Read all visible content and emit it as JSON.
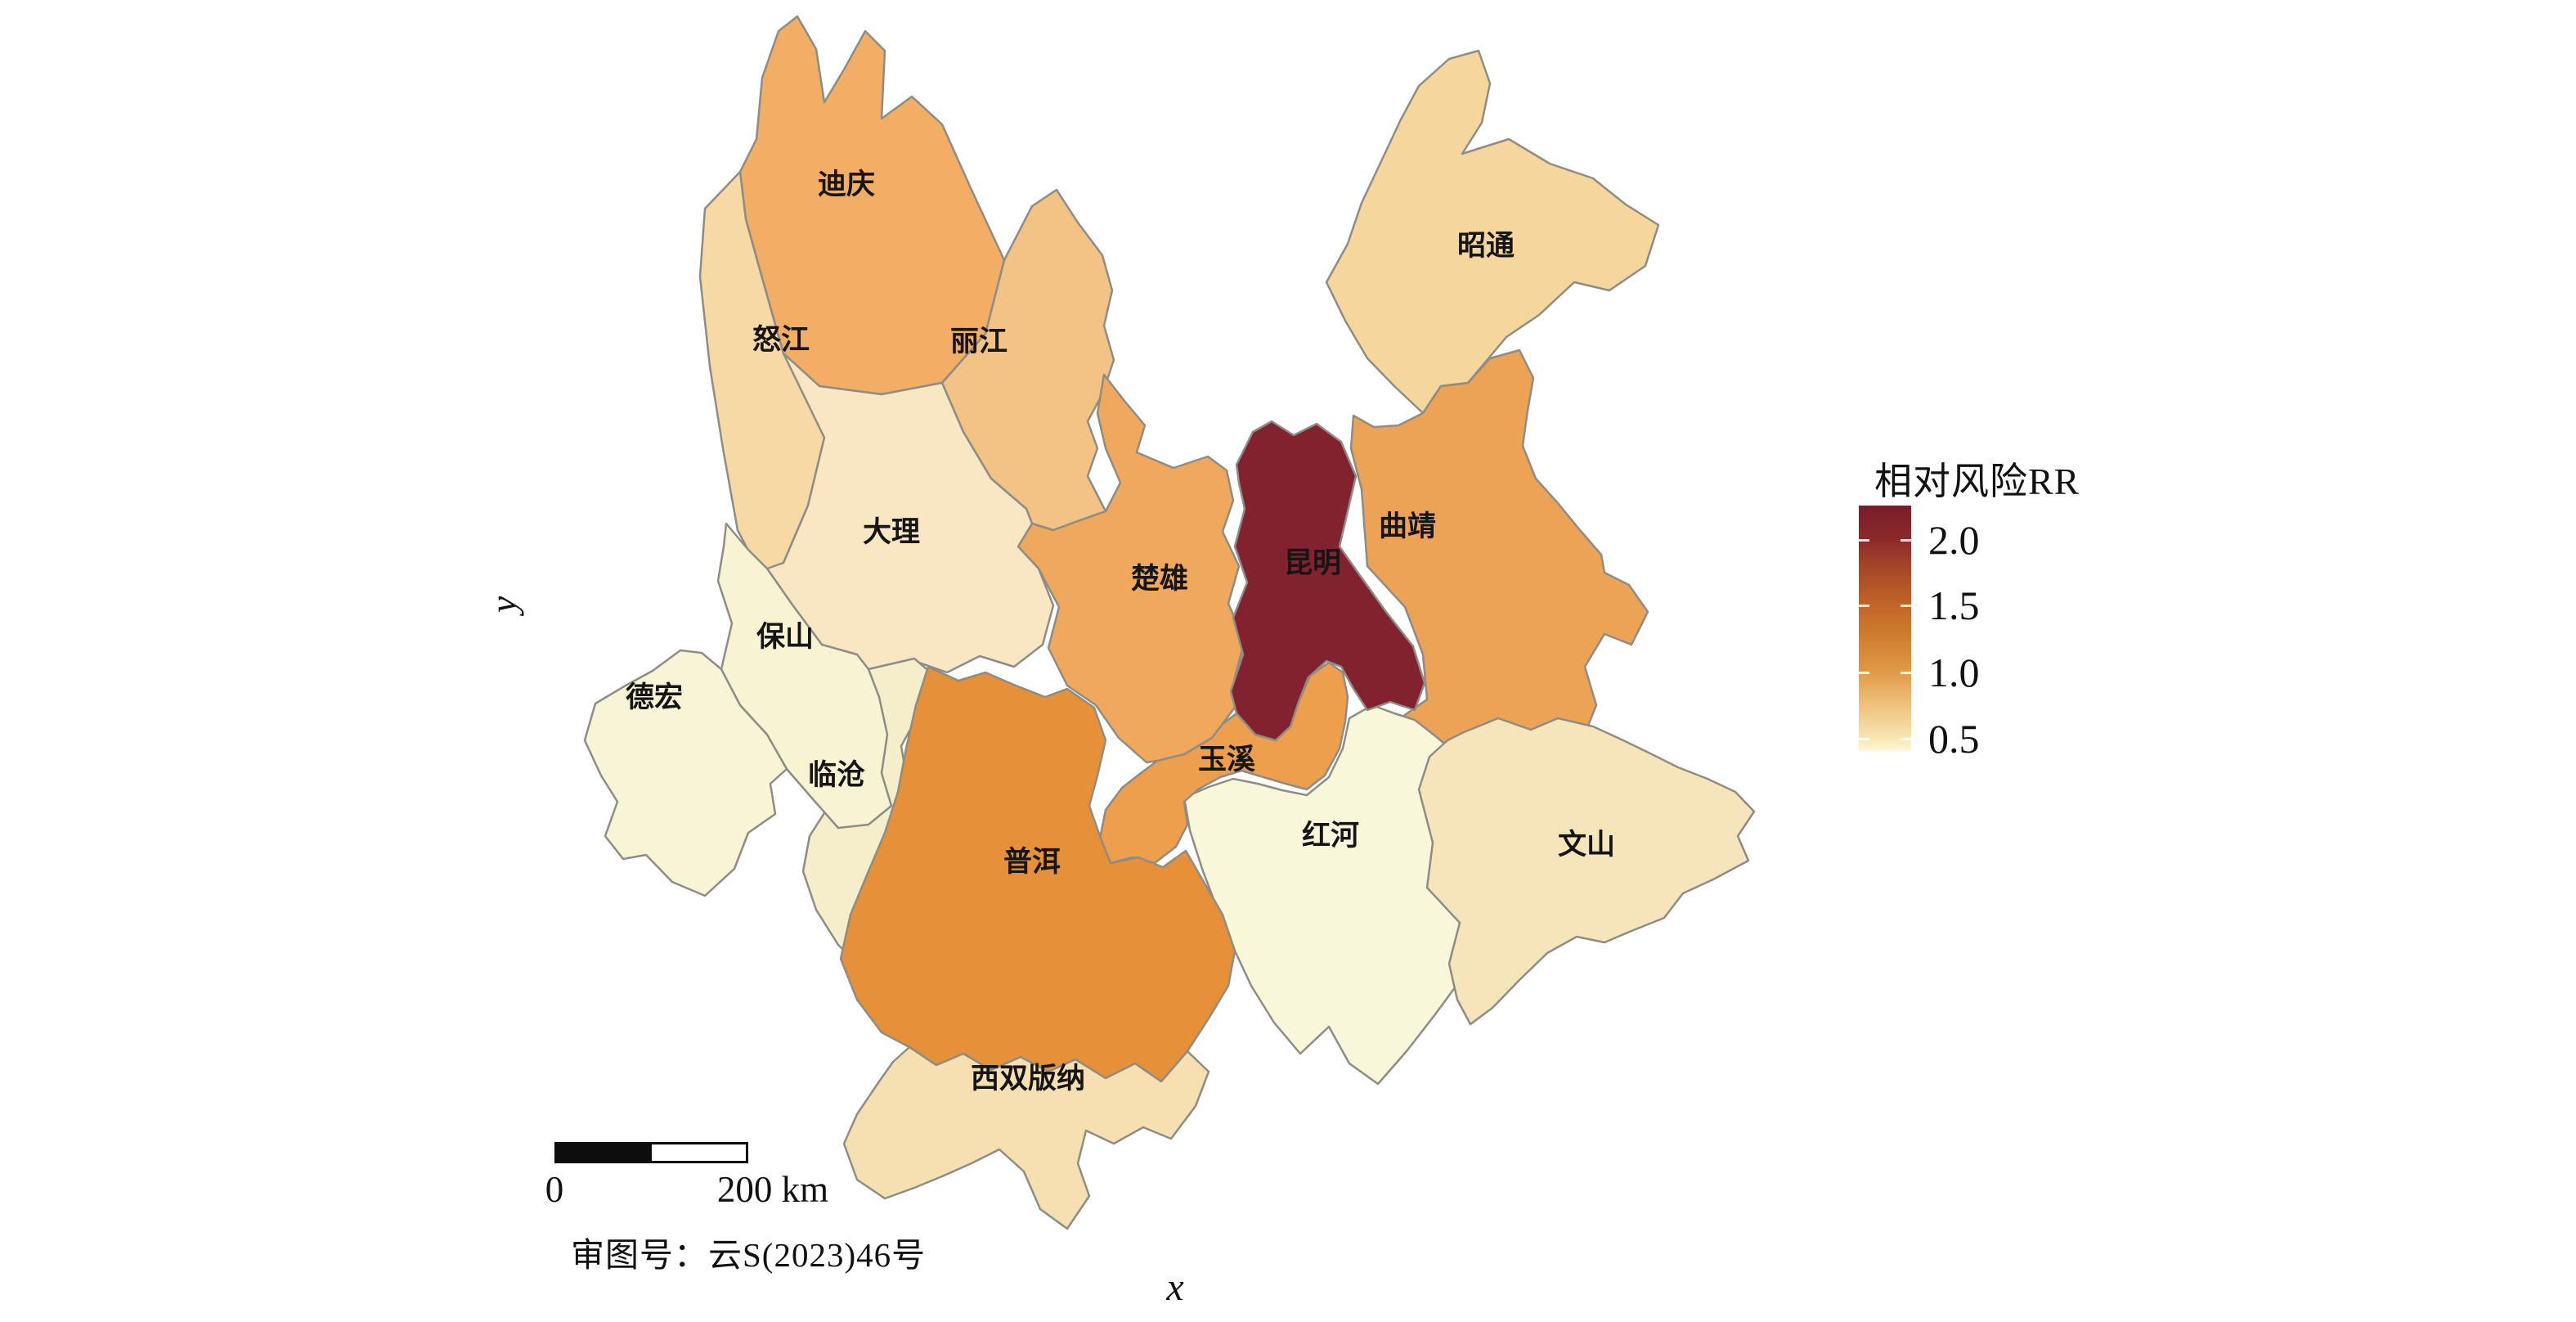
{
  "figure": {
    "background": "#ffffff",
    "border_color": "#8d8d86"
  },
  "legend": {
    "title": "相对风险RR",
    "tick_labels": [
      "2.0",
      "1.5",
      "1.0",
      "0.5"
    ],
    "gradient_colors": [
      "#7a1b2b",
      "#8c2a28",
      "#a84a28",
      "#c06428",
      "#d07f31",
      "#e09a46",
      "#eec17c",
      "#f8e7b4",
      "#fdf8d8"
    ],
    "gradient_positions": [
      0,
      14,
      27,
      40,
      54,
      68,
      81,
      95,
      100
    ]
  },
  "scalebar": {
    "start_label": "0",
    "end_label": "200 km"
  },
  "map_note": "审图号：云S(2023)46号",
  "axes": {
    "x_label": "x",
    "y_label": "y"
  },
  "regions": [
    {
      "id": "zhaotong",
      "name": "昭通",
      "color": "#f5d79e",
      "rr_estimate": 0.8
    },
    {
      "id": "qujing",
      "name": "曲靖",
      "color": "#eda355",
      "rr_estimate": 1.1
    },
    {
      "id": "honghe",
      "name": "红河",
      "color": "#f9f7da",
      "rr_estimate": 0.55
    },
    {
      "id": "wenshan",
      "name": "文山",
      "color": "#f6e4bb",
      "rr_estimate": 0.72
    },
    {
      "id": "yuxi",
      "name": "玉溪",
      "color": "#ee9f4e",
      "rr_estimate": 1.1
    },
    {
      "id": "diqing",
      "name": "迪庆",
      "color": "#f1ae64",
      "rr_estimate": 1.0
    },
    {
      "id": "lijiang",
      "name": "丽江",
      "color": "#f3c285",
      "rr_estimate": 0.9
    },
    {
      "id": "nujiang",
      "name": "怒江",
      "color": "#f6d9a4",
      "rr_estimate": 0.8
    },
    {
      "id": "chuxiong",
      "name": "楚雄",
      "color": "#efa85c",
      "rr_estimate": 1.05
    },
    {
      "id": "kunming",
      "name": "昆明",
      "color": "#82222e",
      "rr_estimate": 2.1
    },
    {
      "id": "dali",
      "name": "大理",
      "color": "#f8e7c2",
      "rr_estimate": 0.7
    },
    {
      "id": "lincang",
      "name": "临沧",
      "color": "#f6eeca",
      "rr_estimate": 0.65
    },
    {
      "id": "baoshan",
      "name": "保山",
      "color": "#f8f3d3",
      "rr_estimate": 0.6
    },
    {
      "id": "dehong",
      "name": "德宏",
      "color": "#f8f4d6",
      "rr_estimate": 0.6
    },
    {
      "id": "puer",
      "name": "普洱",
      "color": "#e69137",
      "rr_estimate": 1.2
    },
    {
      "id": "xishuangbanna",
      "name": "西双版纳",
      "color": "#f6dfb0",
      "rr_estimate": 0.75
    }
  ]
}
